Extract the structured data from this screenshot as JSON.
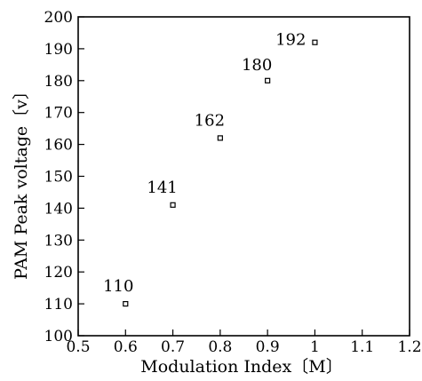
{
  "chart_data": {
    "type": "scatter",
    "title": "",
    "xlabel": "Modulation Index〔M〕",
    "ylabel": "PAM Peak voltage〔v〕",
    "xlim": [
      0.5,
      1.2
    ],
    "ylim": [
      100,
      200
    ],
    "x_ticks": [
      "0.5",
      "0.6",
      "0.7",
      "0.8",
      "0.9",
      "1",
      "1.1",
      "1.2"
    ],
    "x_tick_values": [
      0.5,
      0.6,
      0.7,
      0.8,
      0.9,
      1.0,
      1.1,
      1.2
    ],
    "y_ticks": [
      "100",
      "110",
      "120",
      "130",
      "140",
      "150",
      "160",
      "170",
      "180",
      "190",
      "200"
    ],
    "y_tick_values": [
      100,
      110,
      120,
      130,
      140,
      150,
      160,
      170,
      180,
      190,
      200
    ],
    "series": [
      {
        "x": [
          0.6,
          0.7,
          0.8,
          0.9,
          1.0
        ],
        "y": [
          110,
          141,
          162,
          180,
          192
        ],
        "labels": [
          "110",
          "141",
          "162",
          "180",
          "192"
        ]
      }
    ],
    "grid": false,
    "legend": "none"
  }
}
